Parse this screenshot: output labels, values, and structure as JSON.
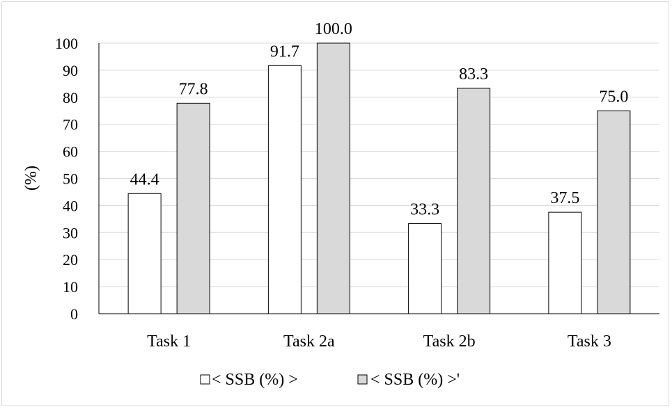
{
  "chart_data": {
    "type": "bar",
    "categories": [
      "Task 1",
      "Task 2a",
      "Task 2b",
      "Task 3"
    ],
    "series": [
      {
        "name": "< SSB (%) >",
        "values": [
          44.4,
          91.7,
          33.3,
          37.5
        ],
        "value_labels": [
          "44.4",
          "91.7",
          "33.3",
          "37.5"
        ],
        "color": "#ffffff"
      },
      {
        "name": "< SSB (%) >'",
        "values": [
          77.8,
          100.0,
          83.3,
          75.0
        ],
        "value_labels": [
          "77.8",
          "100.0",
          "83.3",
          "75.0"
        ],
        "color": "#d9d9d9"
      }
    ],
    "ylabel": "(%)",
    "xlabel": "",
    "ylim": [
      0,
      100
    ],
    "yticks": [
      "0",
      "10",
      "20",
      "30",
      "40",
      "50",
      "60",
      "70",
      "80",
      "90",
      "100"
    ],
    "grid": true,
    "legend_position": "bottom",
    "colors": {
      "bar_stroke": "#000000",
      "grid": "#d9d9d9",
      "axis": "#000000"
    }
  }
}
